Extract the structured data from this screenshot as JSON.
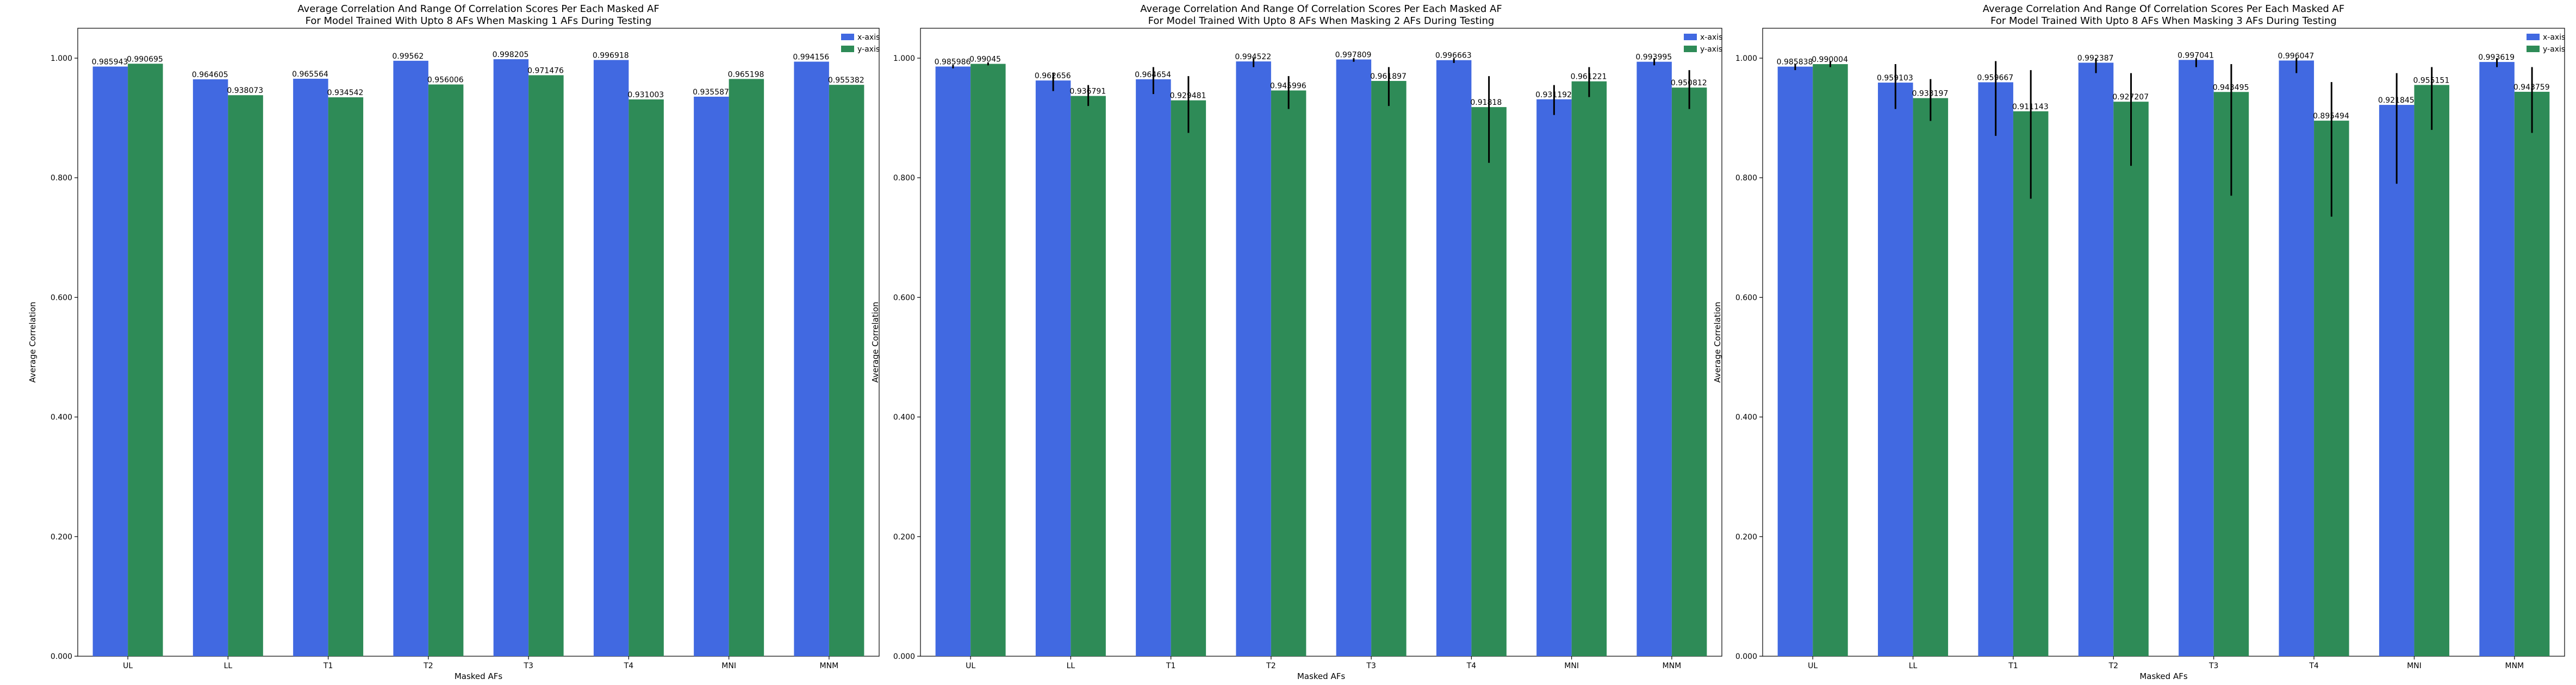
{
  "chart_data": [
    {
      "type": "bar",
      "title_line1": "Average Correlation And Range Of Correlation Scores Per Each Masked AF",
      "title_line2": "For Model Trained With Upto 8 AFs When Masking 1 AFs During Testing",
      "xlabel": "Masked AFs",
      "ylabel": "Average Correlation",
      "ylim": [
        0,
        1.05
      ],
      "yticks": [
        "0.000",
        "0.200",
        "0.400",
        "0.600",
        "0.800",
        "1.000"
      ],
      "categories": [
        "UL",
        "LL",
        "T1",
        "T2",
        "T3",
        "T4",
        "MNI",
        "MNM"
      ],
      "legend_position": "top-right",
      "series": [
        {
          "name": "x-axis",
          "color": "#4169e1",
          "values": [
            0.985943,
            0.964605,
            0.965564,
            0.99562,
            0.998205,
            0.996918,
            0.935587,
            0.994156
          ],
          "labels": [
            "0.985943",
            "0.964605",
            "0.965564",
            "0.99562",
            "0.998205",
            "0.996918",
            "0.935587",
            "0.994156"
          ],
          "err_low": [
            0.985943,
            0.964605,
            0.965564,
            0.99562,
            0.998205,
            0.996918,
            0.935587,
            0.994156
          ],
          "err_high": [
            0.985943,
            0.964605,
            0.965564,
            0.99562,
            0.998205,
            0.996918,
            0.935587,
            0.994156
          ]
        },
        {
          "name": "y-axis",
          "color": "#2e8b57",
          "values": [
            0.990695,
            0.938073,
            0.934542,
            0.956006,
            0.971476,
            0.931003,
            0.965198,
            0.955382
          ],
          "labels": [
            "0.990695",
            "0.938073",
            "0.934542",
            "0.956006",
            "0.971476",
            "0.931003",
            "0.965198",
            "0.955382"
          ],
          "err_low": [
            0.990695,
            0.938073,
            0.934542,
            0.956006,
            0.971476,
            0.931003,
            0.965198,
            0.955382
          ],
          "err_high": [
            0.990695,
            0.938073,
            0.934542,
            0.956006,
            0.971476,
            0.931003,
            0.965198,
            0.955382
          ]
        }
      ]
    },
    {
      "type": "bar",
      "title_line1": "Average Correlation And Range Of Correlation Scores Per Each Masked AF",
      "title_line2": "For Model Trained With Upto 8 AFs When Masking 2 AFs During Testing",
      "xlabel": "Masked AFs",
      "ylabel": "Average Correlation",
      "ylim": [
        0,
        1.05
      ],
      "yticks": [
        "0.000",
        "0.200",
        "0.400",
        "0.600",
        "0.800",
        "1.000"
      ],
      "categories": [
        "UL",
        "LL",
        "T1",
        "T2",
        "T3",
        "T4",
        "MNI",
        "MNM"
      ],
      "legend_position": "top-right",
      "series": [
        {
          "name": "x-axis",
          "color": "#4169e1",
          "values": [
            0.985986,
            0.962656,
            0.964654,
            0.994522,
            0.997809,
            0.996663,
            0.931192,
            0.993995
          ],
          "labels": [
            "0.985986",
            "0.962656",
            "0.964654",
            "0.994522",
            "0.997809",
            "0.996663",
            "0.931192",
            "0.993995"
          ],
          "err_low": [
            0.983,
            0.945,
            0.94,
            0.985,
            0.994,
            0.992,
            0.905,
            0.988
          ],
          "err_high": [
            0.989,
            0.975,
            0.985,
            1.0,
            1.0,
            1.0,
            0.955,
            1.0
          ]
        },
        {
          "name": "y-axis",
          "color": "#2e8b57",
          "values": [
            0.99045,
            0.936791,
            0.929481,
            0.945996,
            0.961897,
            0.91818,
            0.961221,
            0.950812
          ],
          "labels": [
            "0.99045",
            "0.936791",
            "0.929481",
            "0.945996",
            "0.961897",
            "0.91818",
            "0.961221",
            "0.950812"
          ],
          "err_low": [
            0.988,
            0.92,
            0.875,
            0.915,
            0.92,
            0.825,
            0.935,
            0.915
          ],
          "err_high": [
            0.993,
            0.955,
            0.97,
            0.97,
            0.985,
            0.97,
            0.985,
            0.98
          ]
        }
      ]
    },
    {
      "type": "bar",
      "title_line1": "Average Correlation And Range Of Correlation Scores Per Each Masked AF",
      "title_line2": "For Model Trained With Upto 8 AFs When Masking 3 AFs During Testing",
      "xlabel": "Masked AFs",
      "ylabel": "Average Correlation",
      "ylim": [
        0,
        1.05
      ],
      "yticks": [
        "0.000",
        "0.200",
        "0.400",
        "0.600",
        "0.800",
        "1.000"
      ],
      "categories": [
        "UL",
        "LL",
        "T1",
        "T2",
        "T3",
        "T4",
        "MNI",
        "MNM"
      ],
      "legend_position": "top-right",
      "series": [
        {
          "name": "x-axis",
          "color": "#4169e1",
          "values": [
            0.985838,
            0.959103,
            0.959667,
            0.992387,
            0.997041,
            0.996047,
            0.921845,
            0.993619
          ],
          "labels": [
            "0.985838",
            "0.959103",
            "0.959667",
            "0.992387",
            "0.997041",
            "0.996047",
            "0.921845",
            "0.993619"
          ],
          "err_low": [
            0.98,
            0.915,
            0.87,
            0.975,
            0.985,
            0.975,
            0.79,
            0.985
          ],
          "err_high": [
            0.99,
            0.99,
            0.995,
            1.0,
            1.0,
            1.0,
            0.975,
            1.0
          ]
        },
        {
          "name": "y-axis",
          "color": "#2e8b57",
          "values": [
            0.990004,
            0.933197,
            0.911143,
            0.927207,
            0.943495,
            0.895494,
            0.955151,
            0.943759
          ],
          "labels": [
            "0.990004",
            "0.933197",
            "0.911143",
            "0.927207",
            "0.943495",
            "0.895494",
            "0.955151",
            "0.943759"
          ],
          "err_low": [
            0.985,
            0.895,
            0.765,
            0.82,
            0.77,
            0.735,
            0.88,
            0.875
          ],
          "err_high": [
            0.995,
            0.965,
            0.98,
            0.975,
            0.99,
            0.96,
            0.985,
            0.985
          ]
        }
      ]
    }
  ]
}
